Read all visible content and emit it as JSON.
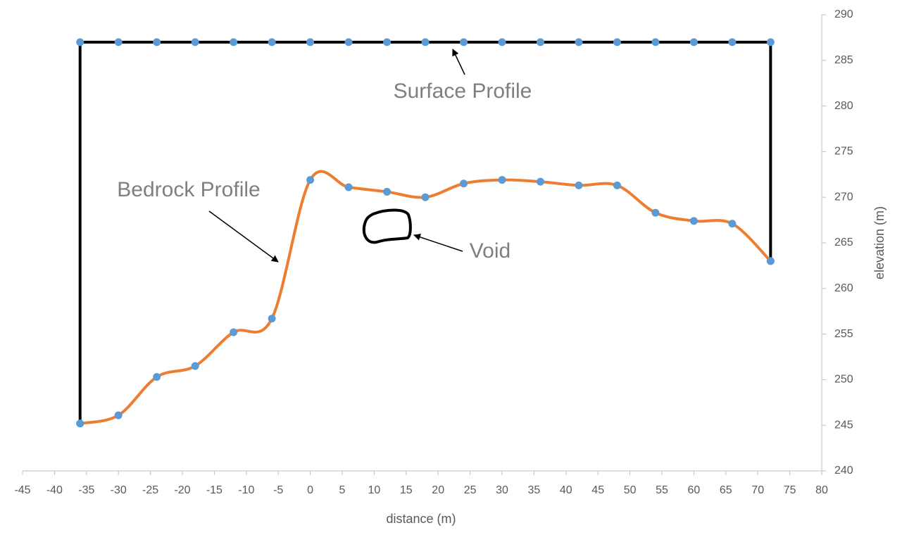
{
  "chart_data": {
    "type": "line",
    "xlabel": "distance (m)",
    "ylabel": "elevation (m)",
    "xlim": [
      -45,
      80
    ],
    "xticks": [
      -45,
      -40,
      -35,
      -30,
      -25,
      -20,
      -15,
      -10,
      -5,
      0,
      5,
      10,
      15,
      20,
      25,
      30,
      35,
      40,
      45,
      50,
      55,
      60,
      65,
      70,
      75,
      80
    ],
    "ylim": [
      240,
      290
    ],
    "yticks": [
      240,
      245,
      250,
      255,
      260,
      265,
      270,
      275,
      280,
      285,
      290
    ],
    "grid": false,
    "marker_color": "#5b9bd5",
    "series": [
      {
        "name": "Surface Profile",
        "color": "#000000",
        "smooth": false,
        "x": [
          -36,
          -36,
          -30,
          -24,
          -18,
          -12,
          -6,
          0,
          6,
          12,
          18,
          24,
          30,
          36,
          42,
          48,
          54,
          60,
          66,
          72,
          72
        ],
        "values": [
          245.2,
          287,
          287,
          287,
          287,
          287,
          287,
          287,
          287,
          287,
          287,
          287,
          287,
          287,
          287,
          287,
          287,
          287,
          287,
          287,
          263
        ]
      },
      {
        "name": "Bedrock Profile",
        "color": "#ed7d31",
        "smooth": true,
        "x": [
          -36,
          -30,
          -24,
          -18,
          -12,
          -6,
          0,
          6,
          12,
          18,
          24,
          30,
          36,
          42,
          48,
          54,
          60,
          66,
          72
        ],
        "values": [
          245.2,
          246.1,
          250.3,
          251.5,
          255.2,
          256.7,
          271.9,
          271.1,
          270.6,
          270.0,
          271.5,
          271.9,
          271.7,
          271.3,
          271.3,
          268.3,
          267.4,
          267.1,
          263.0
        ]
      }
    ],
    "annotations": [
      "Surface Profile",
      "Bedrock Profile",
      "Void"
    ]
  }
}
